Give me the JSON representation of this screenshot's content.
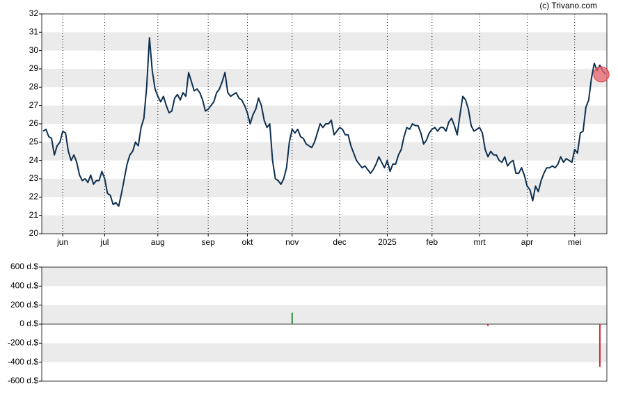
{
  "chart_data": [
    {
      "type": "line",
      "credit": "(c) Trivano.com",
      "color": "#0d2f4f",
      "last_marker_color": "#e8646e",
      "ylim": [
        20,
        32
      ],
      "yticks": [
        20,
        21,
        22,
        23,
        24,
        25,
        26,
        27,
        28,
        29,
        30,
        31,
        32
      ],
      "band_offset": 1,
      "month_lines": true,
      "categories": [
        null,
        null,
        null,
        null,
        null,
        null,
        null,
        "jun",
        null,
        null,
        null,
        null,
        null,
        null,
        null,
        null,
        null,
        null,
        null,
        null,
        null,
        null,
        "jul",
        null,
        null,
        null,
        null,
        null,
        null,
        null,
        null,
        null,
        null,
        null,
        null,
        null,
        null,
        null,
        null,
        null,
        null,
        "aug",
        null,
        null,
        null,
        null,
        null,
        null,
        null,
        null,
        null,
        null,
        null,
        null,
        null,
        null,
        null,
        null,
        null,
        "sep",
        null,
        null,
        null,
        null,
        null,
        null,
        null,
        null,
        null,
        null,
        null,
        null,
        null,
        "okt",
        null,
        null,
        null,
        null,
        null,
        null,
        null,
        null,
        null,
        null,
        null,
        null,
        null,
        null,
        null,
        "nov",
        null,
        null,
        null,
        null,
        null,
        null,
        null,
        null,
        null,
        null,
        null,
        null,
        null,
        null,
        null,
        null,
        "dec",
        null,
        null,
        null,
        null,
        null,
        null,
        null,
        null,
        null,
        null,
        null,
        null,
        null,
        null,
        null,
        null,
        "2025",
        null,
        null,
        null,
        null,
        null,
        null,
        null,
        null,
        null,
        null,
        null,
        null,
        null,
        null,
        null,
        "feb",
        null,
        null,
        null,
        null,
        null,
        null,
        null,
        null,
        null,
        null,
        null,
        null,
        null,
        null,
        null,
        null,
        "mrt",
        null,
        null,
        null,
        null,
        null,
        null,
        null,
        null,
        null,
        null,
        null,
        null,
        null,
        null,
        null,
        null,
        "apr",
        null,
        null,
        null,
        null,
        null,
        null,
        null,
        null,
        null,
        null,
        null,
        null,
        null,
        null,
        null,
        null,
        "mei",
        null,
        null,
        null,
        null,
        null,
        null,
        null,
        null,
        null,
        null,
        null
      ],
      "values": [
        25.6,
        25.7,
        25.3,
        25.2,
        24.3,
        24.8,
        25.0,
        25.6,
        25.5,
        24.5,
        24.0,
        24.3,
        23.9,
        23.2,
        22.9,
        23.0,
        22.8,
        23.2,
        22.7,
        22.9,
        22.9,
        23.4,
        23.0,
        22.2,
        22.1,
        21.6,
        21.7,
        21.5,
        22.2,
        23.0,
        23.8,
        24.3,
        24.5,
        25.0,
        24.8,
        25.8,
        26.3,
        28.0,
        30.7,
        28.9,
        27.9,
        27.5,
        27.2,
        27.5,
        27.0,
        26.6,
        26.7,
        27.4,
        27.6,
        27.3,
        27.7,
        27.5,
        28.8,
        28.3,
        27.8,
        27.9,
        27.7,
        27.3,
        26.7,
        26.8,
        27.0,
        27.2,
        27.7,
        27.9,
        28.3,
        28.8,
        27.7,
        27.5,
        27.6,
        27.7,
        27.4,
        27.3,
        27.0,
        26.6,
        26.0,
        26.5,
        26.8,
        27.4,
        27.0,
        26.2,
        25.8,
        26.0,
        24.0,
        23.0,
        22.9,
        22.7,
        23.0,
        23.6,
        25.0,
        25.7,
        25.5,
        25.7,
        25.3,
        25.2,
        24.9,
        24.8,
        24.7,
        25.0,
        25.5,
        26.0,
        25.8,
        26.0,
        26.0,
        26.2,
        25.4,
        25.6,
        25.8,
        25.7,
        25.4,
        25.4,
        24.8,
        24.4,
        24.0,
        23.8,
        23.6,
        23.7,
        23.5,
        23.3,
        23.5,
        23.8,
        24.2,
        23.9,
        23.6,
        24.0,
        23.4,
        23.8,
        23.8,
        24.3,
        24.6,
        25.3,
        25.8,
        25.7,
        26.0,
        25.9,
        25.9,
        25.5,
        24.9,
        25.1,
        25.5,
        25.7,
        25.8,
        25.6,
        25.8,
        25.8,
        25.6,
        26.1,
        26.3,
        25.9,
        25.4,
        26.5,
        27.5,
        27.3,
        26.8,
        25.9,
        25.6,
        25.7,
        25.8,
        25.5,
        24.6,
        24.2,
        24.5,
        24.3,
        24.3,
        24.0,
        23.9,
        24.2,
        23.7,
        23.9,
        24.0,
        23.3,
        23.3,
        23.6,
        23.2,
        22.6,
        22.4,
        21.8,
        22.6,
        22.3,
        22.9,
        23.3,
        23.6,
        23.6,
        23.7,
        23.6,
        23.8,
        24.2,
        23.9,
        24.1,
        24.0,
        23.9,
        24.6,
        24.4,
        25.5,
        25.6,
        26.9,
        27.3,
        28.5,
        29.3,
        28.9,
        29.2,
        28.9,
        28.7
      ]
    },
    {
      "type": "bar",
      "positive_color": "#2e8b3a",
      "negative_color": "#d62730",
      "ylim": [
        -600,
        600
      ],
      "band_offset": 0,
      "yticks": [
        {
          "value": -600,
          "label": "-600 d.$"
        },
        {
          "value": -400,
          "label": "-400 d.$"
        },
        {
          "value": -200,
          "label": "-200 d.$"
        },
        {
          "value": 0,
          "label": "0 d.$"
        },
        {
          "value": 200,
          "label": "200 d.$"
        },
        {
          "value": 400,
          "label": "400 d.$"
        },
        {
          "value": 600,
          "label": "600 d.$"
        }
      ],
      "values": [
        null,
        null,
        null,
        null,
        null,
        null,
        null,
        null,
        null,
        null,
        null,
        null,
        null,
        null,
        null,
        null,
        null,
        null,
        null,
        null,
        null,
        null,
        null,
        null,
        null,
        null,
        null,
        null,
        null,
        null,
        null,
        null,
        null,
        null,
        null,
        null,
        null,
        null,
        null,
        null,
        null,
        null,
        null,
        null,
        null,
        null,
        null,
        null,
        null,
        null,
        null,
        null,
        null,
        null,
        null,
        null,
        null,
        null,
        null,
        null,
        null,
        null,
        null,
        null,
        null,
        null,
        null,
        null,
        null,
        null,
        null,
        null,
        null,
        null,
        null,
        null,
        null,
        null,
        null,
        null,
        null,
        null,
        null,
        null,
        null,
        null,
        null,
        null,
        null,
        120,
        null,
        null,
        null,
        null,
        null,
        null,
        null,
        null,
        null,
        null,
        null,
        null,
        null,
        null,
        null,
        null,
        null,
        null,
        null,
        null,
        null,
        null,
        null,
        null,
        null,
        null,
        null,
        null,
        null,
        null,
        null,
        null,
        null,
        null,
        null,
        null,
        null,
        null,
        null,
        null,
        null,
        null,
        null,
        null,
        null,
        null,
        null,
        null,
        null,
        null,
        null,
        null,
        null,
        null,
        null,
        null,
        null,
        null,
        null,
        null,
        null,
        null,
        null,
        null,
        null,
        null,
        null,
        null,
        null,
        -20,
        null,
        null,
        null,
        null,
        null,
        null,
        null,
        null,
        null,
        null,
        null,
        null,
        null,
        null,
        null,
        null,
        null,
        null,
        null,
        null,
        null,
        null,
        null,
        null,
        null,
        null,
        null,
        null,
        null,
        null,
        null,
        null,
        null,
        null,
        null,
        null,
        null,
        null,
        null,
        -450,
        null,
        null
      ]
    }
  ]
}
